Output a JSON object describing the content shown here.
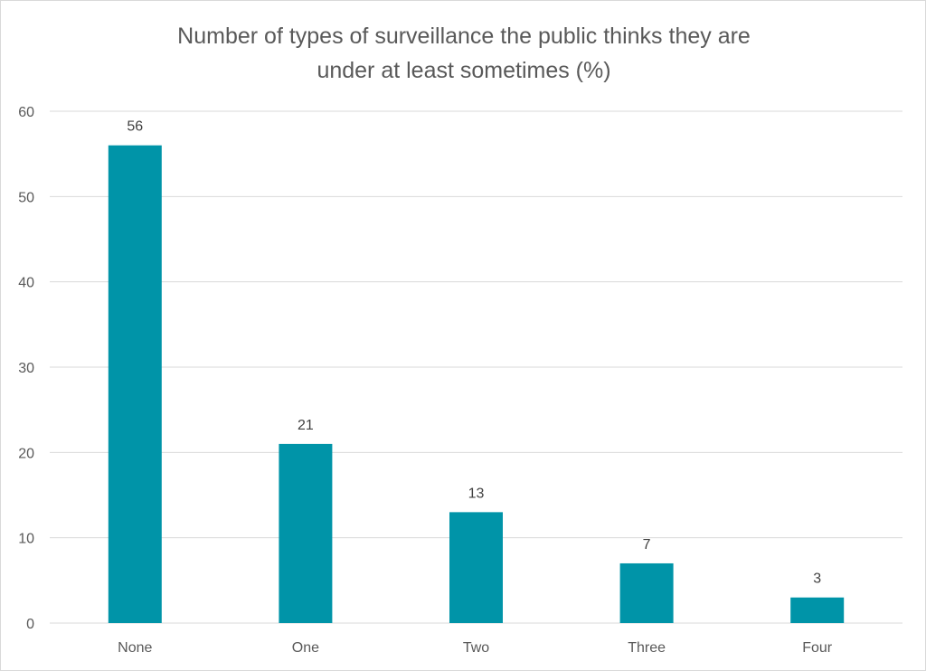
{
  "chart_data": {
    "type": "bar",
    "title_line1": "Number of types of surveillance the public thinks they are",
    "title_line2": "under at least sometimes (%)",
    "categories": [
      "None",
      "One",
      "Two",
      "Three",
      "Four"
    ],
    "values": [
      56,
      21,
      13,
      7,
      3
    ],
    "data_labels": [
      "56",
      "21",
      "13",
      "7",
      "3"
    ],
    "xlabel": "",
    "ylabel": "",
    "ylim": [
      0,
      60
    ],
    "yticks": [
      0,
      10,
      20,
      30,
      40,
      50,
      60
    ],
    "grid": true,
    "legend": "none",
    "bar_color": "#0094a8",
    "grid_color": "#d9d9d9"
  }
}
